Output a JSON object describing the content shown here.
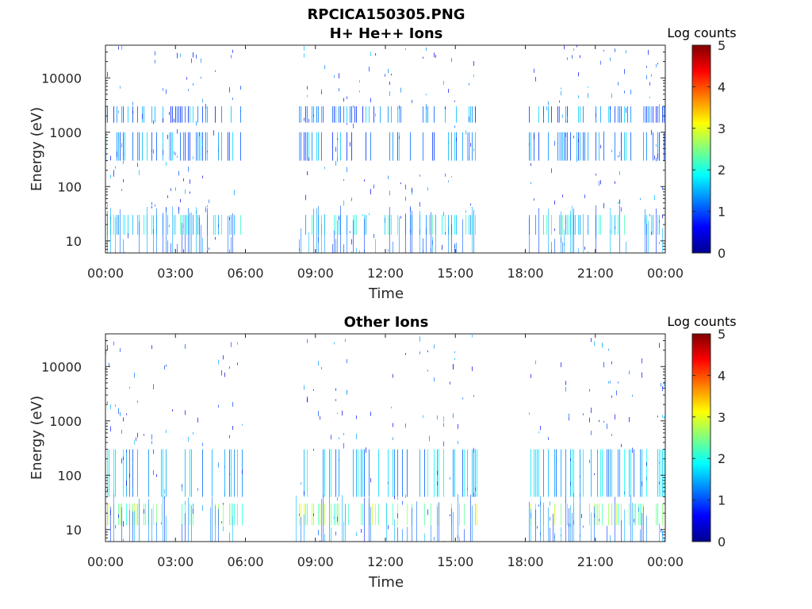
{
  "figure_title": "RPCICA150305.PNG",
  "chart_data": [
    {
      "type": "heatmap",
      "title": "H+ He++ Ions",
      "xlabel": "Time",
      "ylabel": "Energy (eV)",
      "x_tick_labels": [
        "00:00",
        "03:00",
        "06:00",
        "09:00",
        "12:00",
        "15:00",
        "18:00",
        "21:00",
        "00:00"
      ],
      "x_ticks_hours": [
        0,
        3,
        6,
        9,
        12,
        15,
        18,
        21,
        24
      ],
      "xlim_hours": [
        0,
        24
      ],
      "y_scale": "log",
      "y_tick_labels": [
        "10",
        "100",
        "1000",
        "10000"
      ],
      "y_ticks": [
        10,
        100,
        1000,
        10000
      ],
      "ylim": [
        6,
        40000
      ],
      "colorbar_label": "Log counts",
      "colorbar_ticks": [
        "0",
        "1",
        "2",
        "3",
        "4",
        "5"
      ],
      "clim": [
        0,
        5
      ],
      "colormap": "jet",
      "data_intervals_hours": [
        [
          0,
          5.95
        ],
        [
          8.1,
          15.95
        ],
        [
          18.1,
          24
        ]
      ],
      "features": [
        {
          "name": "low-energy band",
          "energy_range_eV": [
            13,
            30
          ],
          "log_counts": 1.8
        },
        {
          "name": "mid-energy band",
          "energy_range_eV": [
            300,
            1000
          ],
          "log_counts": 1.3
        },
        {
          "name": "upper band",
          "energy_range_eV": [
            1500,
            3000
          ],
          "log_counts": 1.2
        }
      ]
    },
    {
      "type": "heatmap",
      "title": "Other Ions",
      "xlabel": "Time",
      "ylabel": "Energy (eV)",
      "x_tick_labels": [
        "00:00",
        "03:00",
        "06:00",
        "09:00",
        "12:00",
        "15:00",
        "18:00",
        "21:00",
        "00:00"
      ],
      "x_ticks_hours": [
        0,
        3,
        6,
        9,
        12,
        15,
        18,
        21,
        24
      ],
      "xlim_hours": [
        0,
        24
      ],
      "y_scale": "log",
      "y_tick_labels": [
        "10",
        "100",
        "1000",
        "10000"
      ],
      "y_ticks": [
        10,
        100,
        1000,
        10000
      ],
      "ylim": [
        6,
        40000
      ],
      "colorbar_label": "Log counts",
      "colorbar_ticks": [
        "0",
        "1",
        "2",
        "3",
        "4",
        "5"
      ],
      "clim": [
        0,
        5
      ],
      "colormap": "jet",
      "data_intervals_hours": [
        [
          0,
          5.95
        ],
        [
          8.1,
          15.95
        ],
        [
          18.1,
          24
        ]
      ],
      "features": [
        {
          "name": "low-energy band",
          "energy_range_eV": [
            12,
            30
          ],
          "log_counts": 2.5
        },
        {
          "name": "main band",
          "energy_range_eV": [
            40,
            300
          ],
          "log_counts": 1.5
        }
      ]
    }
  ]
}
